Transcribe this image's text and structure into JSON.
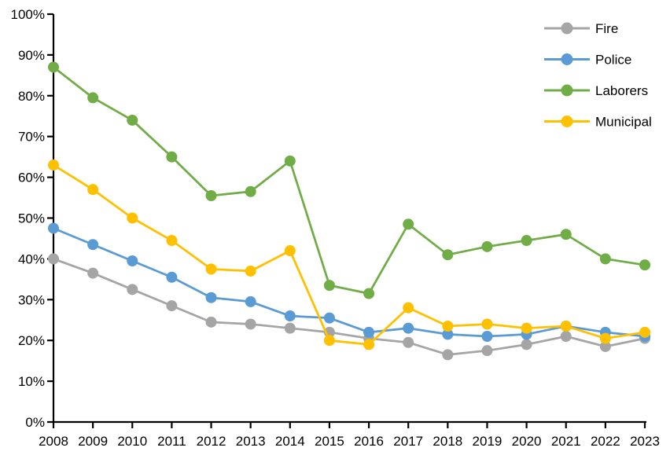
{
  "chart_data": {
    "type": "line",
    "title": "",
    "xlabel": "",
    "ylabel": "",
    "x": [
      2008,
      2009,
      2010,
      2011,
      2012,
      2013,
      2014,
      2015,
      2016,
      2017,
      2018,
      2019,
      2020,
      2021,
      2022,
      2023
    ],
    "series": [
      {
        "name": "Fire",
        "color": "#A5A5A5",
        "values": [
          40,
          36.5,
          32.5,
          28.5,
          24.5,
          24,
          23,
          22,
          20.5,
          19.5,
          16.5,
          17.5,
          19,
          21,
          18.5,
          20.5
        ]
      },
      {
        "name": "Police",
        "color": "#5B9BD5",
        "values": [
          47.5,
          43.5,
          39.5,
          35.5,
          30.5,
          29.5,
          26,
          25.5,
          22,
          23,
          21.5,
          21,
          21.5,
          23.5,
          22,
          21
        ]
      },
      {
        "name": "Laborers",
        "color": "#70AD47",
        "values": [
          87,
          79.5,
          74,
          65,
          55.5,
          56.5,
          64,
          33.5,
          31.5,
          48.5,
          41,
          43,
          44.5,
          46,
          40,
          38.5
        ]
      },
      {
        "name": "Municipal",
        "color": "#FFC000",
        "values": [
          63,
          57,
          50,
          44.5,
          37.5,
          37,
          42,
          20,
          19,
          28,
          23.5,
          24,
          23,
          23.5,
          20.5,
          22
        ]
      }
    ],
    "ylim": [
      0,
      100
    ],
    "ytick_step": 10,
    "ytick_suffix": "%",
    "ytick_labels": [
      "0%",
      "10%",
      "20%",
      "30%",
      "40%",
      "50%",
      "60%",
      "70%",
      "80%",
      "90%",
      "100%"
    ],
    "legend": {
      "position": "top-right",
      "entries": [
        "Fire",
        "Police",
        "Laborers",
        "Municipal"
      ]
    },
    "grid": false,
    "axis_color": "#000000",
    "text_color": "#000000",
    "background": "#FFFFFF",
    "marker": "circle"
  }
}
